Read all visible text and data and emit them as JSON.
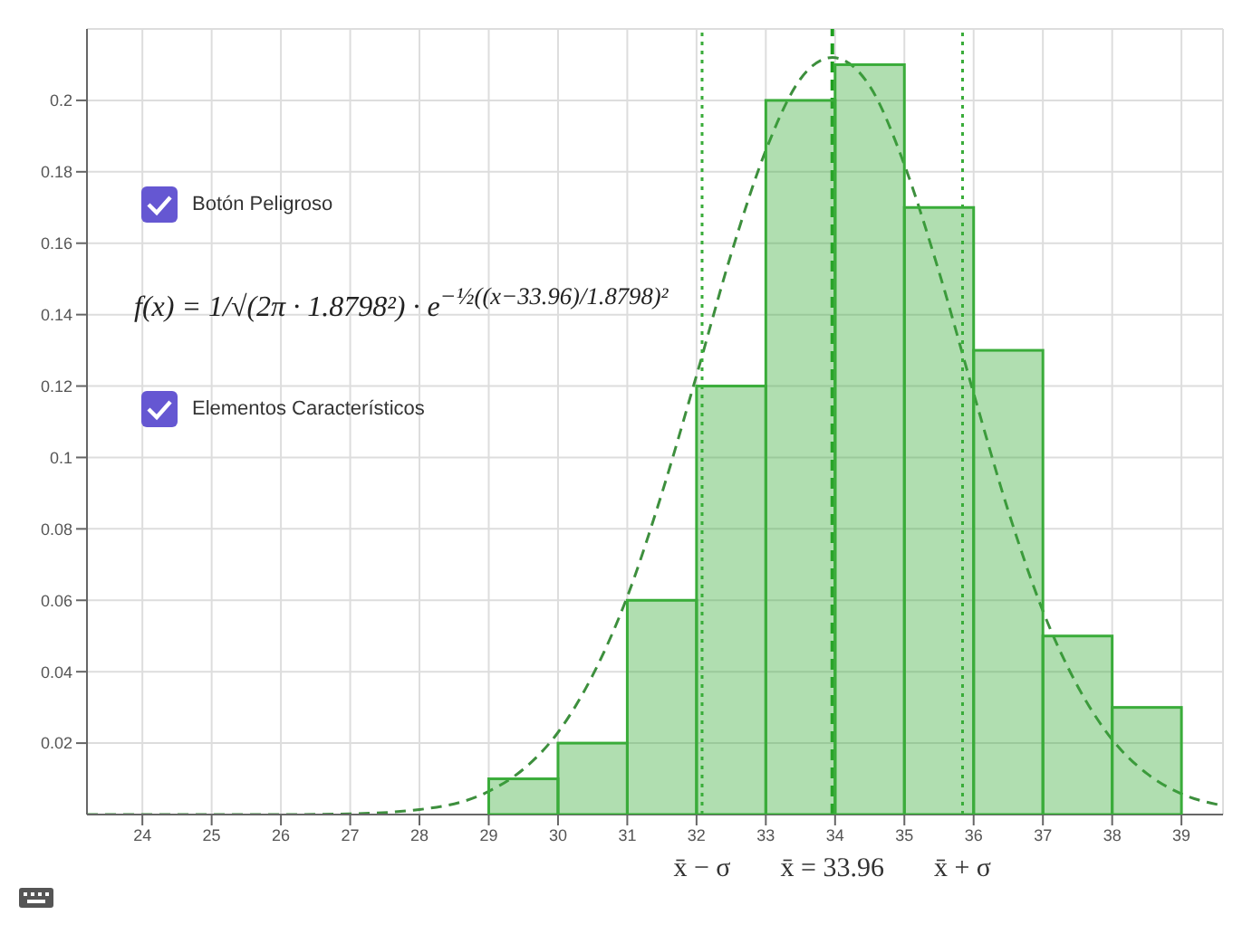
{
  "chart_data": {
    "type": "histogram",
    "bins": [
      29,
      30,
      31,
      32,
      33,
      34,
      35,
      36,
      37,
      38,
      39
    ],
    "series": [
      {
        "color": "#3aac3a",
        "values": [
          0.01,
          0.02,
          0.06,
          0.12,
          0.2,
          0.21,
          0.17,
          0.13,
          0.05,
          0.03
        ]
      },
      {
        "type": "line",
        "color": "#3d8f3d",
        "line_style": "dashed",
        "marker": "none",
        "x": [
          23.2,
          26,
          27,
          28,
          29,
          29.5,
          30,
          30.5,
          31,
          31.5,
          32,
          32.5,
          33,
          33.5,
          33.96,
          34.5,
          35,
          35.5,
          36,
          36.5,
          37,
          37.5,
          38,
          38.5,
          39,
          39.6
        ],
        "values": [
          0,
          0,
          0.0002,
          0.0014,
          0.0065,
          0.0127,
          0.023,
          0.039,
          0.061,
          0.09,
          0.123,
          0.157,
          0.186,
          0.206,
          0.212,
          0.204,
          0.182,
          0.152,
          0.118,
          0.085,
          0.057,
          0.036,
          0.021,
          0.0115,
          0.0058,
          0.0025
        ]
      }
    ],
    "xlim": [
      23.2,
      39.6
    ],
    "xticks": [
      24,
      25,
      26,
      27,
      28,
      29,
      30,
      31,
      32,
      33,
      34,
      35,
      36,
      37,
      38,
      39
    ],
    "ylim": [
      0,
      0.22
    ],
    "yticks": [
      0.02,
      0.04,
      0.06,
      0.08,
      0.1,
      0.12,
      0.14,
      0.16,
      0.18,
      0.2
    ],
    "grid": true,
    "legend": false,
    "ref_lines": [
      {
        "axis": "x",
        "value": 32.08,
        "label": "x̄ − σ",
        "line_style": "dotted",
        "color": "#3aac3a"
      },
      {
        "axis": "x",
        "value": 33.96,
        "label": "x̄ = 33.96",
        "line_style": "dashed",
        "color": "#1e9e1e"
      },
      {
        "axis": "x",
        "value": 35.84,
        "label": "x̄ + σ",
        "line_style": "dotted",
        "color": "#3aac3a"
      }
    ],
    "annotations": [
      "Botón Peligroso",
      "f(x) = 1/√(2π · 1.8798²) · e$^{−½((x−33.96)/1.8798)²}$",
      "Elementos Característicos"
    ]
  }
}
